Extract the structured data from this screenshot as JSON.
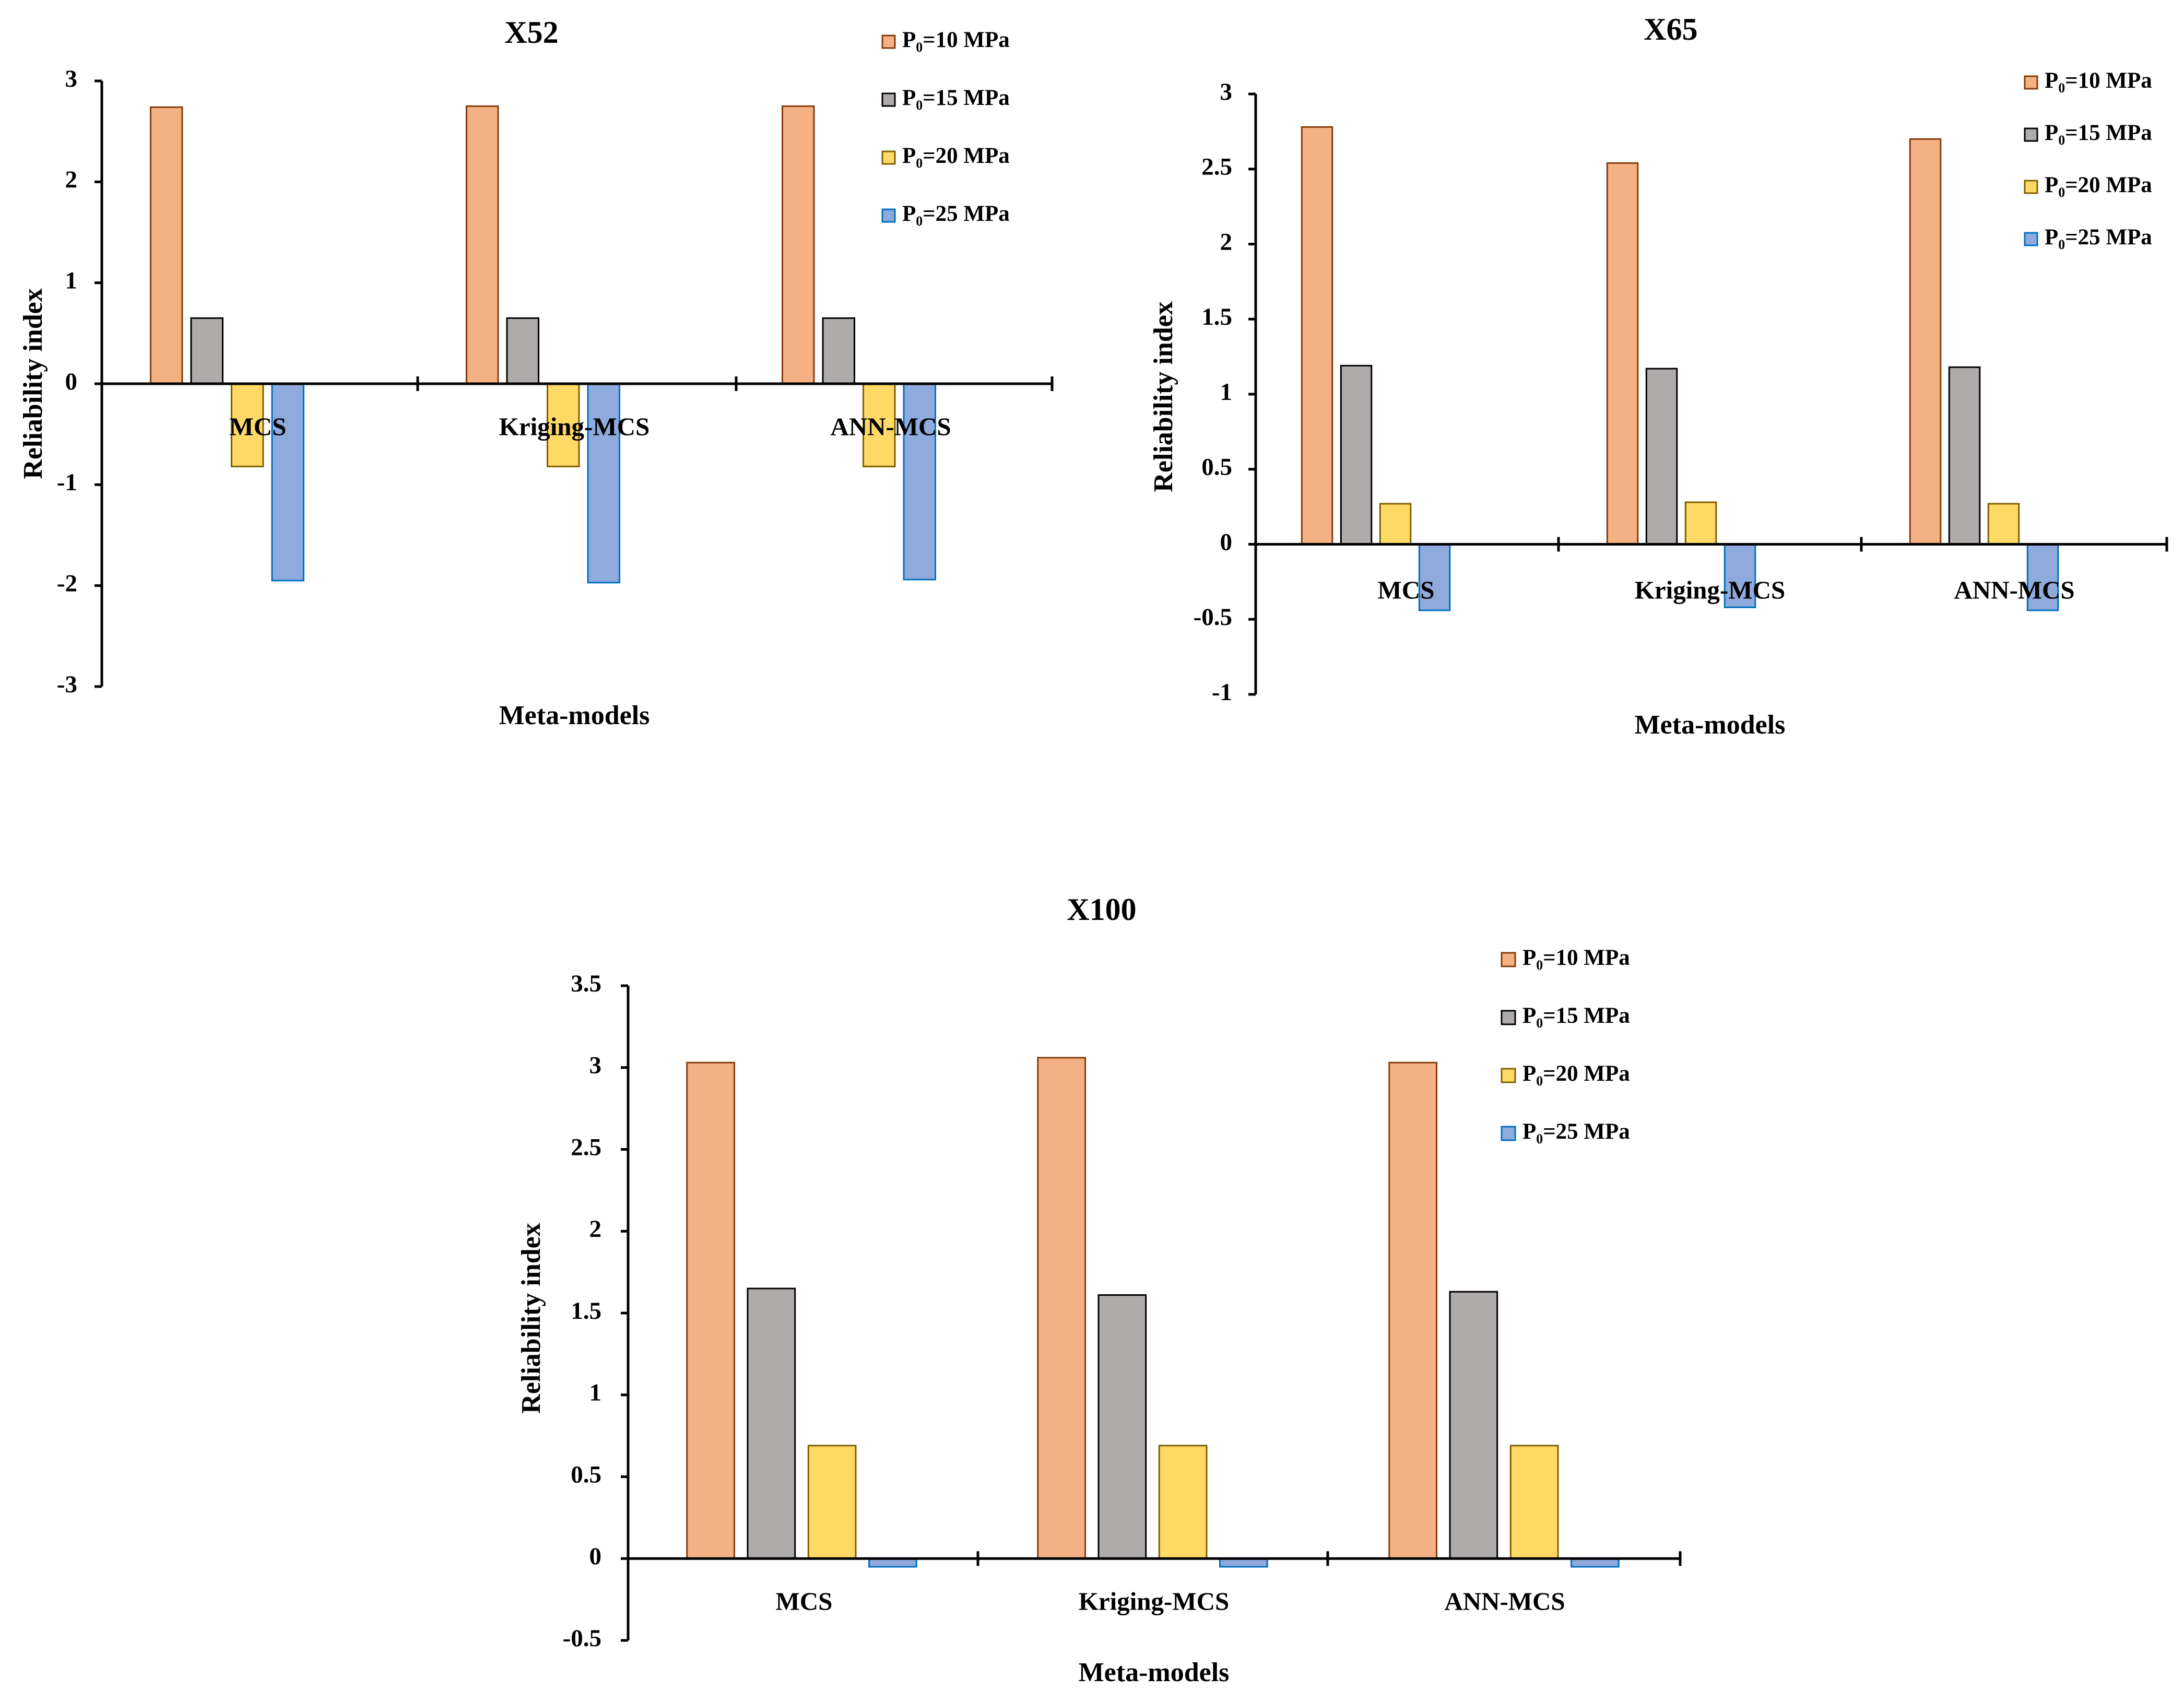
{
  "chart_data": [
    {
      "type": "bar",
      "title": "X52",
      "xlabel": "Meta-models",
      "ylabel": "Reliability index",
      "ylim": [
        -3,
        3
      ],
      "yticks": [
        "-3",
        "-2",
        "-1",
        "0",
        "1",
        "2",
        "3"
      ],
      "tick_values": [
        -3,
        -2,
        -1,
        0,
        1,
        2,
        3
      ],
      "categories": [
        "MCS",
        "Kriging-MCS",
        "ANN-MCS"
      ],
      "legend_position": "top-right",
      "series": [
        {
          "name": "P₀=10 MPa",
          "values": [
            2.74,
            2.75,
            2.75
          ]
        },
        {
          "name": "P₀=15 MPa",
          "values": [
            0.65,
            0.65,
            0.65
          ]
        },
        {
          "name": "P₀=20 MPa",
          "values": [
            -0.82,
            -0.82,
            -0.82
          ]
        },
        {
          "name": "P₀=25 MPa",
          "values": [
            -1.95,
            -1.97,
            -1.94
          ]
        }
      ]
    },
    {
      "type": "bar",
      "title": "X65",
      "xlabel": "Meta-models",
      "ylabel": "Reliability index",
      "ylim": [
        -1,
        3
      ],
      "yticks": [
        "-1",
        "-0.5",
        "0",
        "0.5",
        "1",
        "1.5",
        "2",
        "2.5",
        "3"
      ],
      "tick_values": [
        -1,
        -0.5,
        0,
        0.5,
        1,
        1.5,
        2,
        2.5,
        3
      ],
      "categories": [
        "MCS",
        "Kriging-MCS",
        "ANN-MCS"
      ],
      "legend_position": "top-right",
      "series": [
        {
          "name": "P₀=10 MPa",
          "values": [
            2.78,
            2.54,
            2.7
          ]
        },
        {
          "name": "P₀=15 MPa",
          "values": [
            1.19,
            1.17,
            1.18
          ]
        },
        {
          "name": "P₀=20 MPa",
          "values": [
            0.27,
            0.28,
            0.27
          ]
        },
        {
          "name": "P₀=25 MPa",
          "values": [
            -0.44,
            -0.42,
            -0.44
          ]
        }
      ]
    },
    {
      "type": "bar",
      "title": "X100",
      "xlabel": "Meta-models",
      "ylabel": "Reliability index",
      "ylim": [
        -0.5,
        3.5
      ],
      "yticks": [
        "-0.5",
        "0",
        "0.5",
        "1",
        "1.5",
        "2",
        "2.5",
        "3",
        "3.5"
      ],
      "tick_values": [
        -0.5,
        0,
        0.5,
        1,
        1.5,
        2,
        2.5,
        3,
        3.5
      ],
      "categories": [
        "MCS",
        "Kriging-MCS",
        "ANN-MCS"
      ],
      "legend_position": "top-right",
      "series": [
        {
          "name": "P₀=10 MPa",
          "values": [
            3.03,
            3.06,
            3.03
          ]
        },
        {
          "name": "P₀=15 MPa",
          "values": [
            1.65,
            1.61,
            1.63
          ]
        },
        {
          "name": "P₀=20 MPa",
          "values": [
            0.69,
            0.69,
            0.69
          ]
        },
        {
          "name": "P₀=25 MPa",
          "values": [
            -0.05,
            -0.05,
            -0.05
          ]
        }
      ]
    }
  ],
  "colors": {
    "series_fill": [
      "#F4B183",
      "#AFABAB",
      "#FFD966",
      "#8FAADC"
    ],
    "series_stroke": [
      "#843C0C",
      "#000000",
      "#7F6000",
      "#0070C0"
    ],
    "axis": "#000000"
  }
}
